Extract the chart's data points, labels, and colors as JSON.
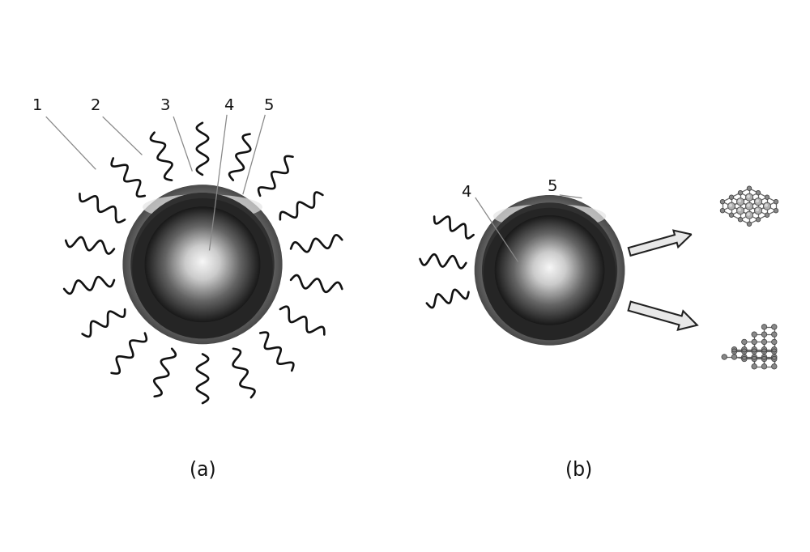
{
  "figure_width": 10.0,
  "figure_height": 6.82,
  "dpi": 100,
  "bg_color": "#ffffff",
  "label_a": "(a)",
  "label_b": "(b)",
  "text_color": "#111111",
  "sphere_dark": "#1a1a1a",
  "sphere_mid": "#666666",
  "sphere_light": "#cccccc",
  "sphere_highlight": "#f8f8f8",
  "shell_dark": "#4a4a4a",
  "shell_mid": "#909090",
  "shell_light": "#d0d0d0",
  "shell_rim_light": "#e0e0e0",
  "wavy_color": "#111111",
  "arrow_fill": "#e8e8e8",
  "arrow_edge": "#222222",
  "line_color": "#666666",
  "pointer_color": "#888888"
}
